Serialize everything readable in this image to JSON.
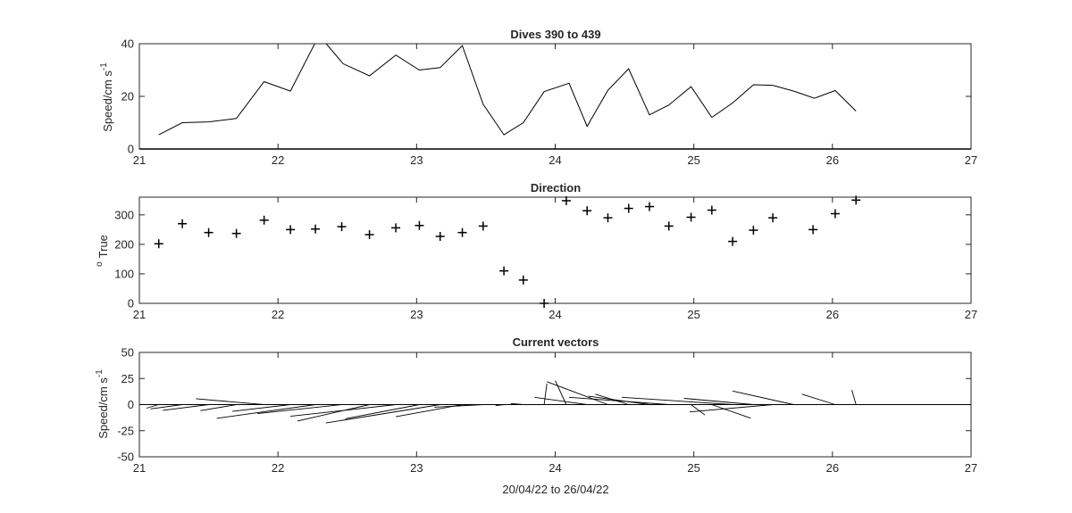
{
  "figure": {
    "xlabel": "20/04/22 to 26/04/22"
  },
  "chart_data": [
    {
      "id": "speed",
      "type": "line",
      "title": "Dives 390 to 439",
      "ylabel": "Speed/cm s",
      "ylabel_sup": "-1",
      "xlim": [
        21,
        27
      ],
      "ylim": [
        0,
        40
      ],
      "xticks": [
        21,
        22,
        23,
        24,
        25,
        26,
        27
      ],
      "yticks": [
        0,
        20,
        40
      ],
      "grid": false,
      "series": [
        {
          "x": [
            21.14,
            21.31,
            21.5,
            21.7,
            21.9,
            22.09,
            22.27,
            22.34,
            22.47,
            22.66,
            22.85,
            23.02,
            23.17,
            23.33,
            23.48,
            23.63,
            23.77,
            23.92,
            24.1,
            24.23,
            24.38,
            24.53,
            24.68,
            24.82,
            24.98,
            25.13,
            25.28,
            25.43,
            25.57,
            25.72,
            25.87,
            26.02,
            26.17
          ],
          "y": [
            5.4,
            10,
            10.3,
            11.6,
            25.6,
            22,
            40.5,
            40.5,
            32.4,
            27.8,
            35.7,
            30,
            30.9,
            39.3,
            17,
            5.4,
            10,
            21.8,
            25,
            8.6,
            22.3,
            30.5,
            13,
            16.7,
            23.7,
            12,
            17.5,
            24.4,
            24.2,
            22,
            19.3,
            22.2,
            14.4
          ]
        }
      ]
    },
    {
      "id": "direction",
      "type": "scatter",
      "title": "Direction",
      "ylabel": "True",
      "ylabel_sup": "o",
      "xlim": [
        21,
        27
      ],
      "ylim": [
        0,
        360
      ],
      "xticks": [
        21,
        22,
        23,
        24,
        25,
        26,
        27
      ],
      "yticks": [
        0,
        100,
        200,
        300
      ],
      "marker": "+",
      "grid": false,
      "series": [
        {
          "x": [
            21.14,
            21.31,
            21.5,
            21.7,
            21.9,
            22.09,
            22.27,
            22.46,
            22.66,
            22.85,
            23.02,
            23.17,
            23.33,
            23.48,
            23.63,
            23.77,
            23.92,
            24.08,
            24.23,
            24.38,
            24.53,
            24.68,
            24.82,
            24.98,
            25.13,
            25.28,
            25.43,
            25.57,
            25.86,
            26.02,
            26.17
          ],
          "y": [
            202,
            270,
            240,
            237,
            282,
            250,
            252,
            260,
            233,
            256,
            264,
            227,
            240,
            262,
            110,
            79,
            0,
            348,
            314,
            290,
            322,
            328,
            262,
            292,
            316,
            210,
            248,
            290,
            250,
            304,
            350
          ]
        }
      ]
    },
    {
      "id": "vectors",
      "type": "quiver",
      "title": "Current vectors",
      "ylabel": "Speed/cm s",
      "ylabel_sup": "-1",
      "xlim": [
        21,
        27
      ],
      "ylim": [
        -50,
        50
      ],
      "xticks": [
        21,
        22,
        23,
        24,
        25,
        26,
        27
      ],
      "yticks": [
        -50,
        -25,
        0,
        25,
        50
      ],
      "grid": false,
      "time_axis_scale_per_day": 50,
      "vectors": [
        {
          "t": 21.14,
          "u": -4.5,
          "v": -3.4
        },
        {
          "t": 21.31,
          "u": -11.5,
          "v": -4.1
        },
        {
          "t": 21.5,
          "u": -16.5,
          "v": -5.5
        },
        {
          "t": 21.7,
          "u": -13.0,
          "v": -5.8
        },
        {
          "t": 21.9,
          "u": -24.6,
          "v": 5.6
        },
        {
          "t": 22.09,
          "u": -21.0,
          "v": -6.5
        },
        {
          "t": 22.27,
          "u": -35.6,
          "v": -13.2
        },
        {
          "t": 22.46,
          "u": -30.4,
          "v": -8.6
        },
        {
          "t": 22.66,
          "u": -26.0,
          "v": -15.7
        },
        {
          "t": 22.85,
          "u": -38.0,
          "v": -11.2
        },
        {
          "t": 23.02,
          "u": -26.7,
          "v": -13.5
        },
        {
          "t": 23.17,
          "u": -41.2,
          "v": -17.6
        },
        {
          "t": 23.33,
          "u": -24.0,
          "v": -11.6
        },
        {
          "t": 23.48,
          "u": -17.6,
          "v": -2.5
        },
        {
          "t": 23.63,
          "u": -3.0,
          "v": -1.0
        },
        {
          "t": 23.77,
          "u": -4.5,
          "v": 1.0
        },
        {
          "t": 23.92,
          "u": 1.0,
          "v": 20.0
        },
        {
          "t": 24.08,
          "u": -4.0,
          "v": 23.0
        },
        {
          "t": 24.23,
          "u": -19.0,
          "v": 7.0
        },
        {
          "t": 24.38,
          "u": -22.0,
          "v": 22.0
        },
        {
          "t": 24.53,
          "u": -12.0,
          "v": 10.0
        },
        {
          "t": 24.68,
          "u": -22.0,
          "v": 8.0
        },
        {
          "t": 24.82,
          "u": -36.0,
          "v": 7.0
        },
        {
          "t": 24.98,
          "u": 5.0,
          "v": -10.0
        },
        {
          "t": 25.13,
          "u": 14.0,
          "v": -13.0
        },
        {
          "t": 25.28,
          "u": -40.0,
          "v": 7.0
        },
        {
          "t": 25.43,
          "u": -25.0,
          "v": 6.0
        },
        {
          "t": 25.57,
          "u": -30.0,
          "v": -7.0
        },
        {
          "t": 25.72,
          "u": -22.0,
          "v": 13.0
        },
        {
          "t": 26.02,
          "u": -12.0,
          "v": 10.0
        },
        {
          "t": 26.17,
          "u": -1.5,
          "v": 14.0
        }
      ]
    }
  ]
}
